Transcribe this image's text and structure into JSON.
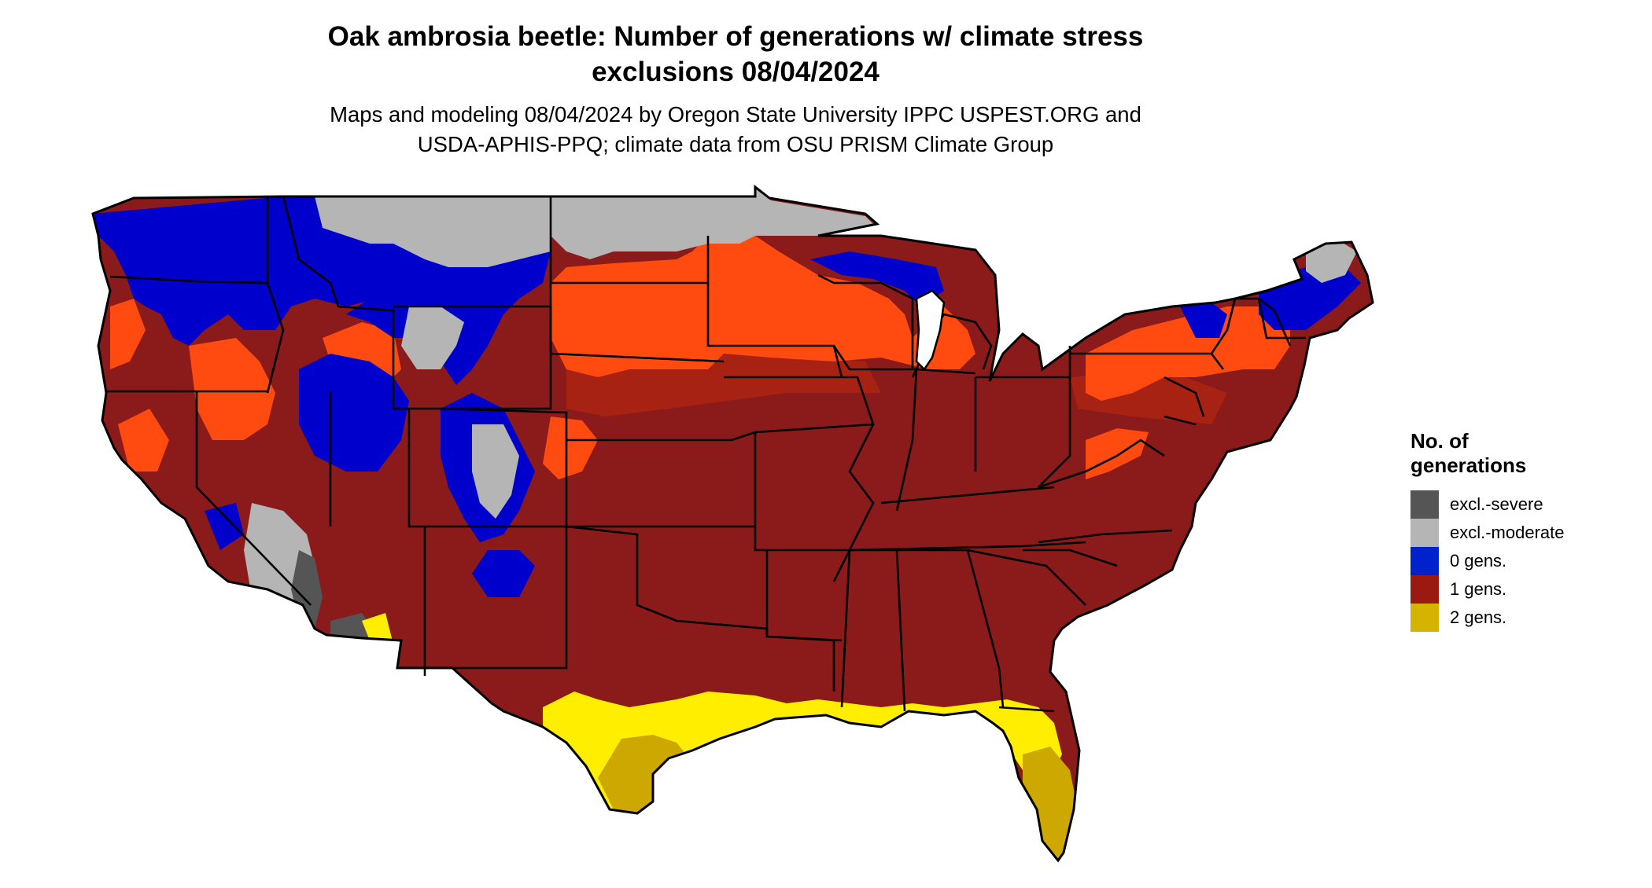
{
  "title": {
    "line1": "Oak ambrosia beetle: Number of generations w/ climate stress",
    "line2": "exclusions 08/04/2024"
  },
  "subtitle": {
    "line1": "Maps and modeling 08/04/2024 by Oregon State University IPPC USPEST.ORG and",
    "line2": "USDA-APHIS-PPQ; climate data from OSU PRISM Climate Group"
  },
  "legend": {
    "title_line1": "No. of",
    "title_line2": "generations",
    "items": [
      {
        "label": "excl.-severe",
        "color": "#555555"
      },
      {
        "label": "excl.-moderate",
        "color": "#b5b5b5"
      },
      {
        "label": "0 gens.",
        "color": "#0022cc"
      },
      {
        "label": "1 gens.",
        "color": "#9a1a12"
      },
      {
        "label": "2 gens.",
        "color": "#d4b400"
      }
    ]
  },
  "colors": {
    "cat_excl_severe": "#555555",
    "cat_excl_moderate": "#b5b5b5",
    "cat_zero": "#0000cc",
    "cat_one_dark": "#8b1a1a",
    "cat_one_mid": "#b02818",
    "cat_one_light": "#ff4a10",
    "cat_two_yellow": "#ffee00",
    "cat_two_gold": "#cca800",
    "state_borders": "#000000"
  }
}
